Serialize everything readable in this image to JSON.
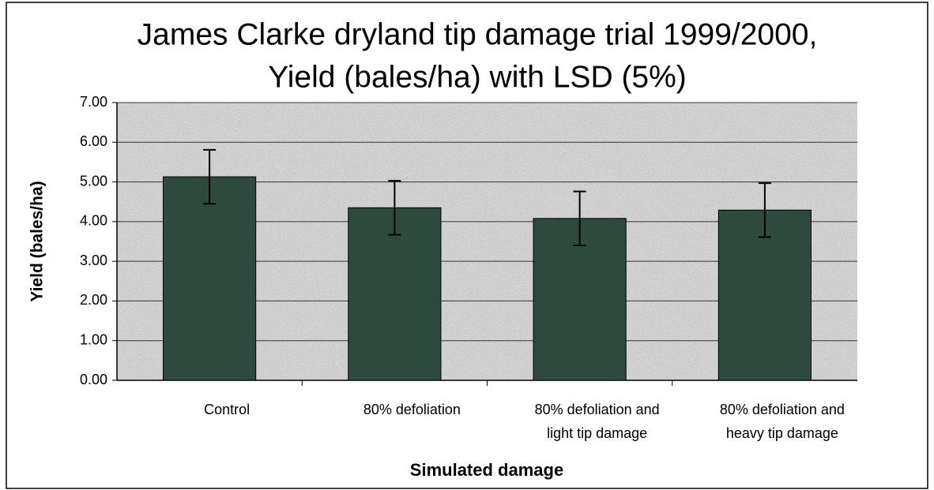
{
  "chart_data": {
    "type": "bar",
    "title": [
      "James Clarke dryland tip damage trial 1999/2000,",
      "Yield (bales/ha) with LSD (5%)"
    ],
    "y_label": "Yield (bales/ha)",
    "x_label": "Simulated damage",
    "categories": [
      [
        "Control"
      ],
      [
        "80% defoliation"
      ],
      [
        "80% defoliation and",
        "light tip damage"
      ],
      [
        "80% defoliation and",
        "heavy tip damage"
      ]
    ],
    "series": [
      {
        "color": "#2e4a3f",
        "values": [
          5.13,
          4.35,
          4.08,
          4.29
        ],
        "errors": [
          0.68,
          0.68,
          0.68,
          0.68
        ]
      }
    ],
    "ylim": [
      0,
      7
    ],
    "yticks": [
      {
        "value": 0,
        "label": "0.00"
      },
      {
        "value": 1,
        "label": "1.00"
      },
      {
        "value": 2,
        "label": "2.00"
      },
      {
        "value": 3,
        "label": "3.00"
      },
      {
        "value": 4,
        "label": "4.00"
      },
      {
        "value": 5,
        "label": "5.00"
      },
      {
        "value": 6,
        "label": "6.00"
      },
      {
        "value": 7,
        "label": "7.00"
      }
    ],
    "grid": true
  }
}
